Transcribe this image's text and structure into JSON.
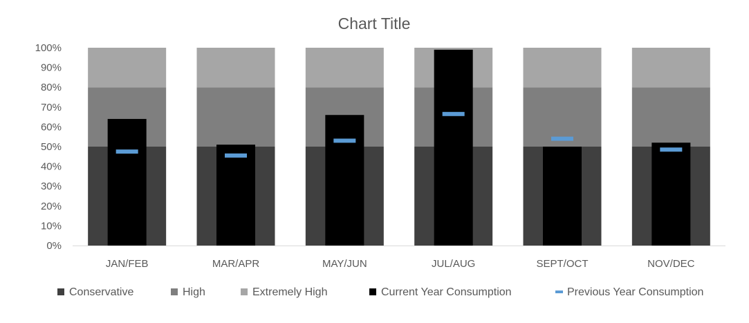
{
  "chart_data": {
    "type": "bar",
    "title": "Chart Title",
    "xlabel": "",
    "ylabel": "",
    "ylim": [
      0,
      1
    ],
    "y_ticks": [
      "0%",
      "10%",
      "20%",
      "30%",
      "40%",
      "50%",
      "60%",
      "70%",
      "80%",
      "90%",
      "100%"
    ],
    "categories": [
      "JAN/FEB",
      "MAR/APR",
      "MAY/JUN",
      "JUL/AUG",
      "SEPT/OCT",
      "NOV/DEC"
    ],
    "series": [
      {
        "name": "Conservative",
        "kind": "stacked-band",
        "color": "#404040",
        "values": [
          0.5,
          0.5,
          0.5,
          0.5,
          0.5,
          0.5
        ]
      },
      {
        "name": "High",
        "kind": "stacked-band",
        "color": "#7f7f7f",
        "values": [
          0.3,
          0.3,
          0.3,
          0.3,
          0.3,
          0.3
        ]
      },
      {
        "name": "Extremely High",
        "kind": "stacked-band",
        "color": "#a6a6a6",
        "values": [
          0.2,
          0.2,
          0.2,
          0.2,
          0.2,
          0.2
        ]
      },
      {
        "name": "Current Year Consumption",
        "kind": "bar",
        "color": "#000000",
        "values": [
          0.64,
          0.51,
          0.66,
          0.99,
          0.5,
          0.52
        ]
      },
      {
        "name": "Previous Year Consumption",
        "kind": "marker",
        "color": "#5b9bd5",
        "values": [
          0.475,
          0.455,
          0.53,
          0.665,
          0.54,
          0.485
        ]
      }
    ],
    "legend_position": "bottom",
    "grid": false
  }
}
